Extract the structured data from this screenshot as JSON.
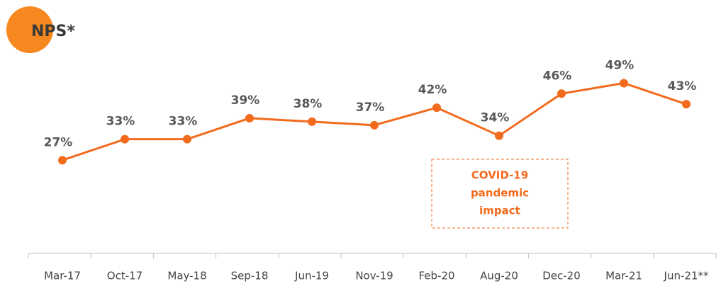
{
  "chart_data": {
    "type": "line",
    "title": "NPS*",
    "categories": [
      "Mar-17",
      "Oct-17",
      "May-18",
      "Sep-18",
      "Jun-19",
      "Nov-19",
      "Feb-20",
      "Aug-20",
      "Dec-20",
      "Mar-21",
      "Jun-21**"
    ],
    "values": [
      27,
      33,
      33,
      39,
      38,
      37,
      42,
      34,
      46,
      49,
      43
    ],
    "value_labels": [
      "27%",
      "33%",
      "33%",
      "39%",
      "38%",
      "37%",
      "42%",
      "34%",
      "46%",
      "49%",
      "43%"
    ],
    "color": "#f26b1d",
    "annotation": [
      "COVID-19",
      "pandemic",
      "impact"
    ]
  }
}
